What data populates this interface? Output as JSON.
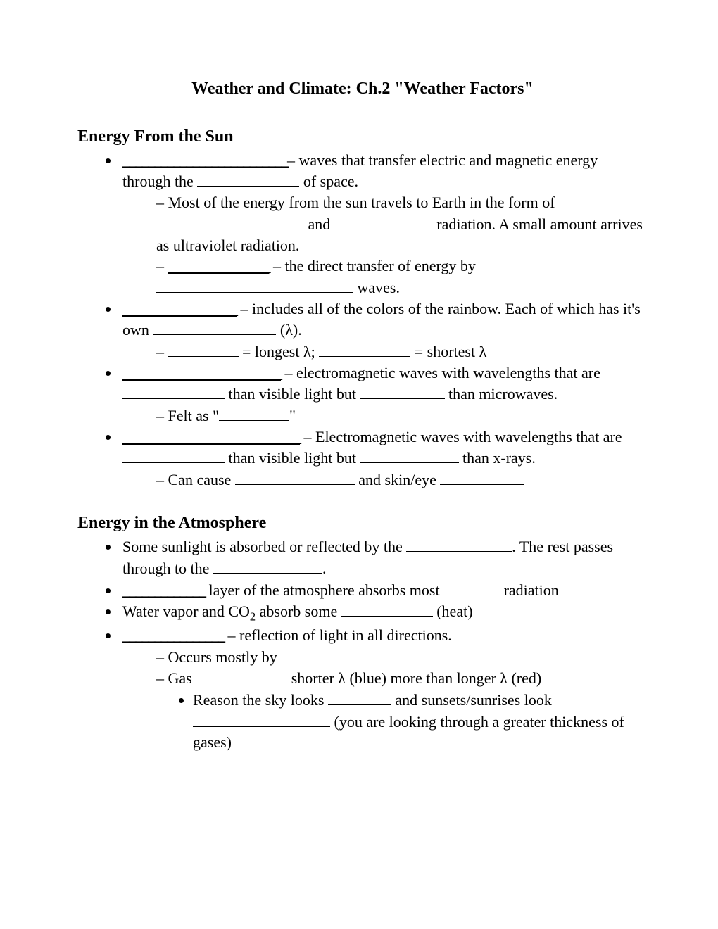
{
  "title": "Weather and Climate: Ch.2 \"Weather Factors\"",
  "sections": {
    "sun": {
      "heading": "Energy From the Sun",
      "b1_txt1": "– waves that transfer electric and magnetic energy through the ",
      "b1_txt2": " of space.",
      "b1_s1_txt1": "Most of the energy from the sun travels to Earth in the form of ",
      "b1_s1_txt2": " and ",
      "b1_s1_txt3": " radiation. A small amount arrives as ultraviolet radiation.",
      "b1_s2_txt1": " – the direct transfer of energy by ",
      "b1_s2_txt2": " waves.",
      "b2_txt1": " – includes all of the colors of the rainbow. Each of which has it's own ",
      "b2_txt2": " (λ).",
      "b2_s1_txt1": " = longest λ; ",
      "b2_s1_txt2": " = shortest λ",
      "b3_txt1": " – electromagnetic waves with wavelengths that are ",
      "b3_txt2": " than visible light but ",
      "b3_txt3": " than microwaves.",
      "b3_s1_txt1": "Felt as \"",
      "b3_s1_txt2": "\"",
      "b4_txt1": " – Electromagnetic waves with wavelengths that are ",
      "b4_txt2": " than visible light but ",
      "b4_txt3": " than x-rays.",
      "b4_s1_txt1": "Can cause ",
      "b4_s1_txt2": " and skin/eye "
    },
    "atm": {
      "heading": "Energy in the Atmosphere",
      "b1_txt1": "Some sunlight is absorbed or reflected by the ",
      "b1_txt2": ". The rest passes through to the ",
      "b1_txt3": ".",
      "b2_txt1": " layer of the atmosphere absorbs most ",
      "b2_txt2": " radiation",
      "b3_txt1a": "Water vapor and CO",
      "b3_txt1b": " absorb some ",
      "b3_txt2": " (heat)",
      "b4_txt1": " – reflection of light in all directions.",
      "b4_s1_txt1": "Occurs mostly by ",
      "b4_s2_txt1": "Gas ",
      "b4_s2_txt2": " shorter λ (blue) more than longer λ (red)",
      "b4_s2_ss1_txt1": "Reason the sky looks ",
      "b4_s2_ss1_txt2": " and sunsets/sunrises look ",
      "b4_s2_ss1_txt3": " (you are looking through a greater thickness of gases)"
    }
  },
  "blanks": {
    "bblank_26": "__________________________",
    "bblank_18": "__________________",
    "bblank_16": "________________",
    "bblank_25": "_________________________",
    "bblank_28": "____________________________",
    "bblank_13": "_____________"
  },
  "widths": {
    "w80": 80,
    "w90": 90,
    "w100": 100,
    "w115": 115,
    "w120": 120,
    "w130": 130,
    "w140": 140,
    "w145": 145,
    "w150": 150,
    "w155": 155,
    "w165": 165,
    "w170": 170,
    "w175": 175,
    "w195": 195,
    "w210": 210,
    "w280": 280
  }
}
